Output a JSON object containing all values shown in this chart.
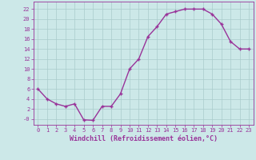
{
  "x": [
    0,
    1,
    2,
    3,
    4,
    5,
    6,
    7,
    8,
    9,
    10,
    11,
    12,
    13,
    14,
    15,
    16,
    17,
    18,
    19,
    20,
    21,
    22,
    23
  ],
  "y": [
    6,
    4,
    3,
    2.5,
    3,
    -0.2,
    -0.3,
    2.5,
    2.5,
    5,
    10,
    12,
    16.5,
    18.5,
    21,
    21.5,
    22,
    22,
    22,
    21,
    19,
    15.5,
    14,
    14
  ],
  "line_color": "#993399",
  "marker": "+",
  "bg_color": "#cce8e8",
  "grid_color": "#aacccc",
  "xlabel": "Windchill (Refroidissement éolien,°C)",
  "xlabel_color": "#993399",
  "ytick_vals": [
    0,
    2,
    4,
    6,
    8,
    10,
    12,
    14,
    16,
    18,
    20,
    22
  ],
  "ytick_labels": [
    "-0",
    "2",
    "4",
    "6",
    "8",
    "10",
    "12",
    "14",
    "16",
    "18",
    "20",
    "22"
  ],
  "xticks": [
    0,
    1,
    2,
    3,
    4,
    5,
    6,
    7,
    8,
    9,
    10,
    11,
    12,
    13,
    14,
    15,
    16,
    17,
    18,
    19,
    20,
    21,
    22,
    23
  ],
  "ylim": [
    -1.2,
    23.5
  ],
  "xlim": [
    -0.5,
    23.5
  ],
  "tick_label_color": "#993399",
  "axis_color": "#993399",
  "linewidth": 1.0,
  "markersize": 3,
  "font_size_tick": 5,
  "font_size_xlabel": 6
}
